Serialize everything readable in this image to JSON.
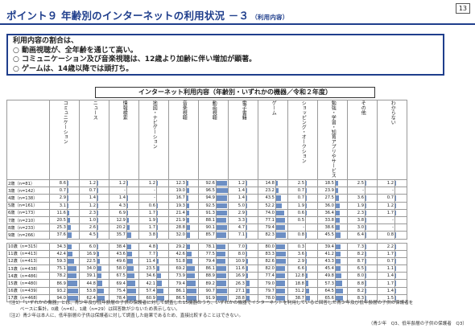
{
  "page_number": "13",
  "title": "ポイント９ 年齢別のインターネットの利用状況 －３",
  "title_sub": "（利用内容）",
  "summary": {
    "heading": "利用内容の割合は、",
    "bullets": [
      "○ 動画視聴が、全年齢を通じて高い。",
      "○ コミュニケーション及び音楽視聴は、12歳より加齢に伴い増加が顕著。",
      "○ ゲームは、14歳以降では頭打ち。"
    ]
  },
  "table_title": "インターネット利用内容（年齢別・いずれかの機器／令和２年度）",
  "columns": [
    "コミュニケーション",
    "ニュース",
    "情報検索",
    "地図・ナビゲーション",
    "音楽視聴",
    "動画視聴",
    "電子書籍",
    "ゲーム",
    "ショッピング・オークション",
    "勉強・学習・知育アプリやサービス",
    "その他",
    "わからない"
  ],
  "accent": "#1f3e8c",
  "bar_color": "#6d8fc4",
  "highlight": "#eef3a6",
  "rows_group1": [
    {
      "label": "2歳（n=81）",
      "v": [
        "8.6",
        "1.2",
        "1.2",
        "1.2",
        "12.3",
        "92.6",
        "1.2",
        "14.8",
        "2.5",
        "18.5",
        "2.5",
        "1.2"
      ]
    },
    {
      "label": "3歳（n=142）",
      "v": [
        "0.7",
        "0.7",
        "-",
        "-",
        "19.0",
        "96.5",
        "1.4",
        "23.2",
        "0.7",
        "23.9",
        "-",
        "-"
      ]
    },
    {
      "label": "4歳（n=138）",
      "v": [
        "2.9",
        "1.4",
        "1.4",
        "-",
        "16.7",
        "94.9",
        "1.4",
        "43.5",
        "0.7",
        "27.5",
        "3.6",
        "0.7"
      ]
    },
    {
      "label": "5歳（n=161）",
      "v": [
        "3.1",
        "1.2",
        "4.3",
        "0.6",
        "19.3",
        "92.5",
        "5.0",
        "52.2",
        "1.9",
        "36.0",
        "1.9",
        "1.2"
      ]
    },
    {
      "label": "6歳（n=173）",
      "v": [
        "11.6",
        "2.3",
        "6.9",
        "1.7",
        "21.4",
        "91.3",
        "2.9",
        "74.0",
        "0.6",
        "36.4",
        "2.3",
        "1.7"
      ]
    },
    {
      "label": "7歳（n=210）",
      "v": [
        "20.5",
        "1.0",
        "12.9",
        "1.9",
        "21.9",
        "88.1",
        "3.3",
        "77.1",
        "0.5",
        "33.8",
        "3.8",
        "-"
      ]
    },
    {
      "label": "8歳（n=233）",
      "v": [
        "25.3",
        "2.6",
        "20.2",
        "1.7",
        "28.8",
        "90.1",
        "4.7",
        "79.4",
        "-",
        "38.6",
        "3.0",
        "-"
      ]
    },
    {
      "label": "9歳（n=266）",
      "v": [
        "37.6",
        "4.5",
        "35.7",
        "3.8",
        "32.0",
        "85.7",
        "7.1",
        "82.3",
        "0.8",
        "45.5",
        "6.4",
        "0.8"
      ]
    }
  ],
  "rows_group2": [
    {
      "label": "10歳（n=315）",
      "v": [
        "34.3",
        "6.0",
        "38.4",
        "4.8",
        "29.2",
        "78.1",
        "7.0",
        "80.0",
        "0.3",
        "39.4",
        "7.3",
        "2.2"
      ]
    },
    {
      "label": "11歳（n=413）",
      "v": [
        "42.4",
        "16.9",
        "43.6",
        "7.7",
        "42.6",
        "77.5",
        "8.0",
        "83.3",
        "3.6",
        "41.2",
        "8.2",
        "1.7"
      ]
    },
    {
      "label": "12歳（n=413）",
      "v": [
        "59.3",
        "22.5",
        "49.6",
        "11.4",
        "51.8",
        "79.4",
        "10.9",
        "82.6",
        "2.9",
        "43.3",
        "8.7",
        "0.7"
      ]
    },
    {
      "label": "13歳（n=438）",
      "v": [
        "75.1",
        "34.0",
        "58.0",
        "23.5",
        "69.2",
        "86.1",
        "11.6",
        "82.0",
        "6.6",
        "45.4",
        "6.5",
        "1.1"
      ]
    },
    {
      "label": "14歳（n=486）",
      "v": [
        "78.2",
        "39.1",
        "67.5",
        "34.6",
        "73.9",
        "88.9",
        "16.9",
        "77.4",
        "12.8",
        "49.8",
        "8.0",
        "1.4"
      ]
    },
    {
      "label": "15歳（n=480）",
      "v": [
        "86.9",
        "44.8",
        "69.4",
        "42.1",
        "79.4",
        "89.2",
        "26.3",
        "79.0",
        "18.8",
        "57.3",
        "8.8",
        "1.7"
      ]
    },
    {
      "label": "16歳（n=439）",
      "v": [
        "93.2",
        "53.8",
        "75.4",
        "57.4",
        "86.1",
        "90.7",
        "27.1",
        "79.7",
        "31.2",
        "64.5",
        "8.2",
        "1.4"
      ]
    },
    {
      "label": "17歳（n=468）",
      "v": [
        "94.0",
        "62.4",
        "78.4",
        "60.9",
        "86.5",
        "91.9",
        "28.8",
        "78.0",
        "38.7",
        "65.6",
        "8.3",
        "1.5"
      ]
    }
  ],
  "notes": [
    "（注1）「いずれかの機器」とは、青少年及び低年齢層の子供の保護者に対して調査した15機器のうち、いずれかの機器でインターネットを利用していると回答した青少年及び低年齢層の子供の保護者を",
    "　　　ベースに集計。0歳（n=6）、1歳（n=29）は回答数が少ないため表示しない。",
    "（注2）青少年は本人に、低年齢層の子供は保護者に対して調査した結果であるため、直接比較することはできない。"
  ],
  "source": "（青少年　Q3、低年齢層の子供の保護者　Q3）"
}
